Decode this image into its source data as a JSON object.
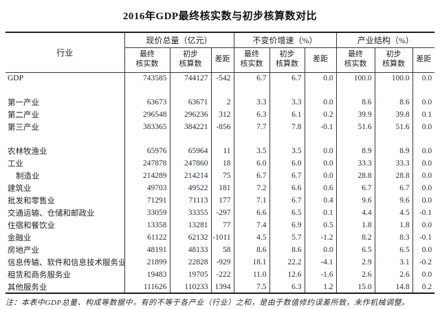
{
  "title": "2016年GDP最终核实数与初步核算数对比",
  "table": {
    "row_header_label": "行业",
    "groups": [
      {
        "label": "现价总量（亿元）"
      },
      {
        "label": "不变价增速（%）"
      },
      {
        "label": "产业结构（%）"
      }
    ],
    "sub_headers": {
      "final": "最终\n核实数",
      "prelim": "初步\n核算数",
      "gap": "差距"
    },
    "rows": [
      {
        "label": "GDP",
        "indent": false,
        "values": [
          "743585",
          "744127",
          "-542",
          "6.7",
          "6.7",
          "0.0",
          "100.0",
          "100.0",
          "0.0"
        ]
      },
      {
        "blank": true
      },
      {
        "label": "第一产业",
        "indent": false,
        "values": [
          "63673",
          "63671",
          "2",
          "3.3",
          "3.3",
          "0.0",
          "8.6",
          "8.6",
          "0.0"
        ]
      },
      {
        "label": "第二产业",
        "indent": false,
        "values": [
          "296548",
          "296236",
          "312",
          "6.3",
          "6.1",
          "0.2",
          "39.9",
          "39.8",
          "0.1"
        ]
      },
      {
        "label": "第三产业",
        "indent": false,
        "values": [
          "383365",
          "384221",
          "-856",
          "7.7",
          "7.8",
          "-0.1",
          "51.6",
          "51.6",
          "0.0"
        ]
      },
      {
        "blank": true
      },
      {
        "label": "农林牧渔业",
        "indent": false,
        "values": [
          "65976",
          "65964",
          "11",
          "3.5",
          "3.5",
          "0.0",
          "8.9",
          "8.9",
          "0.0"
        ]
      },
      {
        "label": "工业",
        "indent": false,
        "values": [
          "247878",
          "247860",
          "18",
          "6.0",
          "6.0",
          "0.0",
          "33.3",
          "33.3",
          "0.0"
        ]
      },
      {
        "label": "制造业",
        "indent": true,
        "values": [
          "214289",
          "214214",
          "75",
          "6.7",
          "6.7",
          "0.0",
          "28.8",
          "28.8",
          "0.0"
        ]
      },
      {
        "label": "建筑业",
        "indent": false,
        "values": [
          "49703",
          "49522",
          "181",
          "7.2",
          "6.6",
          "0.6",
          "6.7",
          "6.7",
          "0.0"
        ]
      },
      {
        "label": "批发和零售业",
        "indent": false,
        "values": [
          "71291",
          "71113",
          "177",
          "7.1",
          "6.7",
          "0.4",
          "9.6",
          "9.6",
          "0.0"
        ]
      },
      {
        "label": "交通运输、仓储和邮政业",
        "indent": false,
        "values": [
          "33059",
          "33355",
          "-297",
          "6.6",
          "6.5",
          "0.1",
          "4.4",
          "4.5",
          "-0.1"
        ]
      },
      {
        "label": "住宿和餐饮业",
        "indent": false,
        "values": [
          "13358",
          "13281",
          "77",
          "7.4",
          "6.9",
          "0.5",
          "1.8",
          "1.8",
          "0.0"
        ]
      },
      {
        "label": "金融业",
        "indent": false,
        "values": [
          "61122",
          "62132",
          "-1011",
          "4.5",
          "5.7",
          "-1.2",
          "8.2",
          "8.3",
          "-0.1"
        ]
      },
      {
        "label": "房地产业",
        "indent": false,
        "values": [
          "48191",
          "48133",
          "58",
          "8.6",
          "8.6",
          "0.0",
          "6.5",
          "6.5",
          "0.0"
        ]
      },
      {
        "label": "信息传输、软件和信息技术服务业",
        "indent": false,
        "values": [
          "21899",
          "22828",
          "-929",
          "18.1",
          "22.2",
          "-4.1",
          "2.9",
          "3.1",
          "-0.2"
        ]
      },
      {
        "label": "租赁和商务服务业",
        "indent": false,
        "values": [
          "19483",
          "19705",
          "-222",
          "11.0",
          "12.6",
          "-1.6",
          "2.6",
          "2.6",
          "0.0"
        ]
      },
      {
        "label": "其他服务业",
        "indent": false,
        "values": [
          "111626",
          "110233",
          "1394",
          "7.5",
          "6.3",
          "1.2",
          "15.0",
          "14.8",
          "0.2"
        ]
      }
    ]
  },
  "note": "注：本表中GDP总量、构成等数据中，有的不等于各产业（行业）之和，是由于数值修约误差所致，未作机械调整。"
}
